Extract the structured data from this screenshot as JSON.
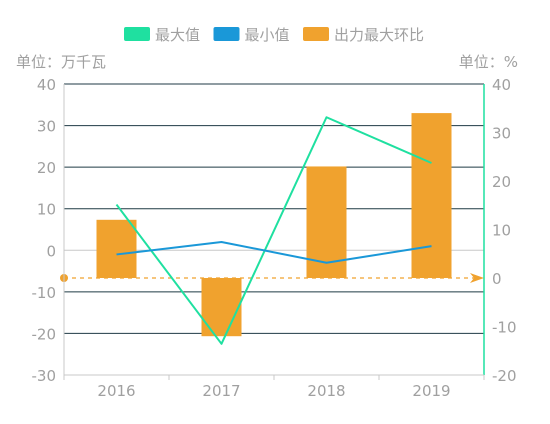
{
  "chart_data": {
    "type": "bar",
    "categories": [
      "2016",
      "2017",
      "2018",
      "2019"
    ],
    "left_axis": {
      "unit_label": "单位：万千瓦",
      "ylim": [
        -30,
        40
      ],
      "ticks": [
        40,
        30,
        20,
        10,
        0,
        -10,
        -20,
        -30
      ]
    },
    "right_axis": {
      "unit_label": "单位：%",
      "ylim": [
        -20,
        40
      ],
      "ticks": [
        40,
        30,
        20,
        10,
        0,
        -10,
        -20
      ]
    },
    "series": [
      {
        "name": "最大值",
        "type": "line",
        "axis": "left",
        "color": "#1fe0a0",
        "values": [
          11,
          -22.5,
          32,
          21
        ]
      },
      {
        "name": "最小值",
        "type": "line",
        "axis": "left",
        "color": "#1a98d8",
        "values": [
          -1,
          2,
          -3,
          1
        ]
      },
      {
        "name": "出力最大环比",
        "type": "bar",
        "axis": "right",
        "color": "#f0a22e",
        "values": [
          12,
          -12,
          23,
          34
        ]
      }
    ],
    "reference_line": {
      "axis": "right",
      "value": 0,
      "color": "#f0a22e",
      "style": "dashed"
    },
    "legend_position": "top",
    "grid": true
  }
}
